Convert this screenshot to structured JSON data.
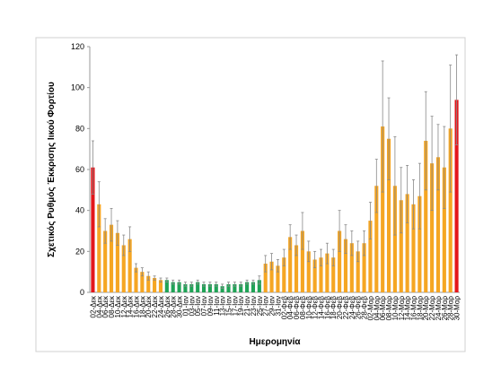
{
  "chart_data": {
    "type": "bar",
    "y_label": "Σχετικός Ρυθμός Έκκρισης Ιικού Φορτίου",
    "x_label": "Ημερομηνία",
    "categories": [
      "02-Δεκ",
      "04-Δεκ",
      "06-Δεκ",
      "08-Δεκ",
      "10-Δεκ",
      "12-Δεκ",
      "14-Δεκ",
      "16-Δεκ",
      "18-Δεκ",
      "20-Δεκ",
      "22-Δεκ",
      "24-Δεκ",
      "26-Δεκ",
      "28-Δεκ",
      "30-Δεκ",
      "01-Ιαν",
      "03-Ιαν",
      "05-Ιαν",
      "07-Ιαν",
      "09-Ιαν",
      "11-Ιαν",
      "13-Ιαν",
      "15-Ιαν",
      "17-Ιαν",
      "19-Ιαν",
      "21-Ιαν",
      "23-Ιαν",
      "25-Ιαν",
      "27-Ιαν",
      "29-Ιαν",
      "31-Ιαν",
      "02-Φεβ",
      "04-Φεβ",
      "06-Φεβ",
      "08-Φεβ",
      "10-Φεβ",
      "12-Φεβ",
      "14-Φεβ",
      "16-Φεβ",
      "18-Φεβ",
      "20-Φεβ",
      "22-Φεβ",
      "24-Φεβ",
      "26-Φεβ",
      "28-Φεβ",
      "02-Μαρ",
      "04-Μαρ",
      "06-Μαρ",
      "08-Μαρ",
      "10-Μαρ",
      "12-Μαρ",
      "14-Μαρ",
      "16-Μαρ",
      "18-Μαρ",
      "20-Μαρ",
      "22-Μαρ",
      "24-Μαρ",
      "26-Μαρ",
      "28-Μαρ",
      "30-Μαρ"
    ],
    "values": [
      61,
      43,
      30,
      33,
      29,
      23,
      26,
      12,
      10,
      8,
      7,
      6,
      6,
      5,
      5,
      4,
      4,
      5,
      4,
      4,
      4,
      3,
      4,
      4,
      4,
      5,
      5,
      6,
      14,
      15,
      13,
      17,
      27,
      23,
      30,
      20,
      16,
      17,
      19,
      17,
      30,
      26,
      24,
      20,
      24,
      35,
      52,
      81,
      75,
      52,
      45,
      48,
      43,
      47,
      74,
      63,
      66,
      61,
      80,
      94
    ],
    "errors": [
      13,
      11,
      6,
      8,
      6,
      5,
      6,
      2,
      2,
      2,
      1,
      1,
      1,
      1,
      1,
      1,
      1,
      1,
      1,
      1,
      1,
      1,
      1,
      1,
      1,
      1,
      1,
      2,
      4,
      4,
      3,
      4,
      6,
      5,
      9,
      5,
      4,
      4,
      5,
      4,
      10,
      7,
      6,
      5,
      6,
      9,
      13,
      32,
      20,
      24,
      16,
      14,
      12,
      16,
      24,
      23,
      16,
      20,
      31,
      22
    ],
    "colors": [
      "#e3161b",
      "#f5a623",
      "#f5a623",
      "#f5a623",
      "#f5a623",
      "#f5a623",
      "#f5a623",
      "#f5a623",
      "#f5a623",
      "#f5a623",
      "#f5a623",
      "#f5a623",
      "#1fa356",
      "#1fa356",
      "#1fa356",
      "#1fa356",
      "#1fa356",
      "#1fa356",
      "#1fa356",
      "#1fa356",
      "#1fa356",
      "#1fa356",
      "#1fa356",
      "#1fa356",
      "#1fa356",
      "#1fa356",
      "#1fa356",
      "#1fa356",
      "#f5a623",
      "#f5a623",
      "#f5a623",
      "#f5a623",
      "#f5a623",
      "#f5a623",
      "#f5a623",
      "#f5a623",
      "#f5a623",
      "#f5a623",
      "#f5a623",
      "#f5a623",
      "#f5a623",
      "#f5a623",
      "#f5a623",
      "#f5a623",
      "#f5a623",
      "#f5a623",
      "#f5a623",
      "#f5a623",
      "#f5a623",
      "#f5a623",
      "#f5a623",
      "#f5a623",
      "#f5a623",
      "#f5a623",
      "#f5a623",
      "#f5a623",
      "#f5a623",
      "#f5a623",
      "#f5a623",
      "#e3161b"
    ],
    "error_color": "#888888",
    "ylim": [
      0,
      120
    ],
    "yticks": [
      0,
      20,
      40,
      60,
      80,
      100,
      120
    ],
    "grid": false
  }
}
